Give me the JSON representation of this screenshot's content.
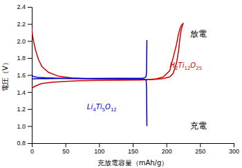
{
  "chart_data": {
    "type": "line",
    "xlabel": "充放電容量（mAh/g）",
    "ylabel": "電圧（V）",
    "xlim": [
      0,
      300
    ],
    "ylim": [
      0.8,
      2.4
    ],
    "xticks": [
      0,
      50,
      100,
      150,
      200,
      250,
      300
    ],
    "yticks": [
      0.8,
      {
        "value": 1.0,
        "label": "1.0"
      },
      1.2,
      1.4,
      1.6,
      1.8,
      {
        "value": 2.0,
        "label": "2.0"
      },
      2.2,
      2.4
    ],
    "series": [
      {
        "color": "#cc0000",
        "x": [
          0,
          1,
          3,
          6,
          10,
          15,
          25,
          40,
          60,
          80,
          100,
          120,
          140,
          160,
          175,
          185,
          195,
          205,
          210,
          215,
          218,
          220,
          222,
          225
        ],
        "values": [
          2.15,
          2.07,
          1.98,
          1.88,
          1.78,
          1.7,
          1.63,
          1.585,
          1.565,
          1.558,
          1.554,
          1.552,
          1.55,
          1.548,
          1.548,
          1.555,
          1.575,
          1.65,
          1.8,
          1.96,
          2.08,
          2.14,
          2.18,
          2.21
        ]
      },
      {
        "color": "#cc0000",
        "x": [
          0,
          3,
          8,
          15,
          30,
          50,
          70,
          100,
          130,
          160,
          180,
          195,
          205,
          210,
          215,
          218,
          220,
          222,
          225
        ],
        "values": [
          1.44,
          1.46,
          1.48,
          1.5,
          1.515,
          1.525,
          1.532,
          1.538,
          1.54,
          1.542,
          1.548,
          1.558,
          1.578,
          1.62,
          1.74,
          1.88,
          2.02,
          2.13,
          2.21
        ]
      },
      {
        "color": "#0000cc",
        "x": [
          0,
          2,
          5,
          10,
          20,
          40,
          80,
          120,
          150,
          160,
          165,
          168,
          170,
          170.5,
          171
        ],
        "values": [
          1.6,
          1.585,
          1.578,
          1.572,
          1.567,
          1.562,
          1.558,
          1.557,
          1.556,
          1.555,
          1.553,
          1.548,
          1.535,
          1.45,
          1.0
        ]
      },
      {
        "color": "#0000cc",
        "x": [
          0,
          5,
          10,
          20,
          40,
          80,
          120,
          150,
          160,
          165,
          168,
          170,
          170.5,
          171
        ],
        "values": [
          1.555,
          1.556,
          1.557,
          1.558,
          1.559,
          1.56,
          1.561,
          1.561,
          1.562,
          1.563,
          1.568,
          1.585,
          1.65,
          2.01
        ]
      }
    ],
    "annotations": [
      {
        "text": "放電",
        "x": 235,
        "y": 2.12
      },
      {
        "text": "充電",
        "x": 235,
        "y": 0.95
      },
      {
        "text": "H2Ti12O25",
        "x": 205,
        "y": 1.71,
        "color": "#cc0000"
      },
      {
        "text": "Li4Ti5O12",
        "x": 82,
        "y": 1.22,
        "color": "#0000cc"
      }
    ]
  }
}
